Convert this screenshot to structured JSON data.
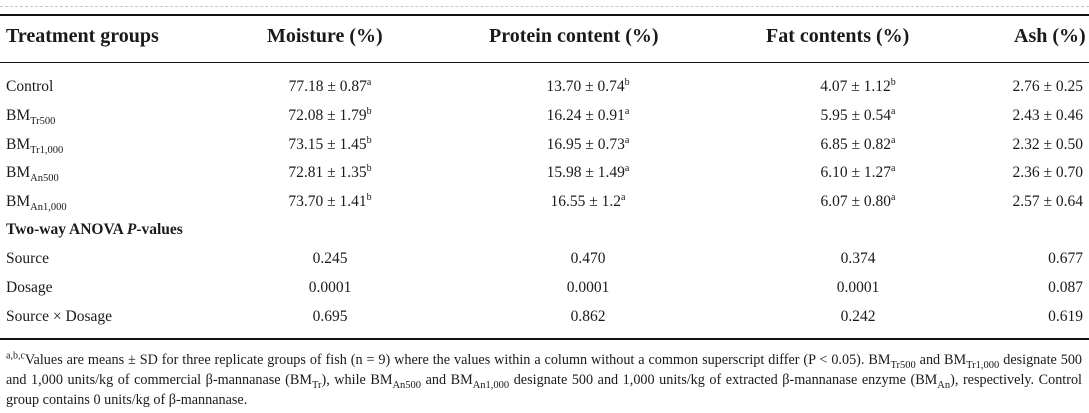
{
  "headers": {
    "col0": "Treatment groups",
    "col1": "Moisture (%)",
    "col2": "Protein content (%)",
    "col3": "Fat contents (%)",
    "col4": "Ash (%)"
  },
  "rows": [
    {
      "name": "Control",
      "name_sub": "",
      "c1": "77.18 ± 0.87",
      "s1": "a",
      "c2": "13.70 ± 0.74",
      "s2": "b",
      "c3": "4.07 ± 1.12",
      "s3": "b",
      "c4": "2.76 ± 0.25"
    },
    {
      "name": "BM",
      "name_sub": "Tr500",
      "c1": "72.08 ± 1.79",
      "s1": "b",
      "c2": "16.24 ± 0.91",
      "s2": "a",
      "c3": "5.95 ± 0.54",
      "s3": "a",
      "c4": "2.43 ± 0.46"
    },
    {
      "name": "BM",
      "name_sub": "Tr1,000",
      "c1": "73.15 ± 1.45",
      "s1": "b",
      "c2": "16.95 ± 0.73",
      "s2": "a",
      "c3": "6.85 ± 0.82",
      "s3": "a",
      "c4": "2.32 ± 0.50"
    },
    {
      "name": "BM",
      "name_sub": "An500",
      "c1": "72.81 ± 1.35",
      "s1": "b",
      "c2": "15.98 ± 1.49",
      "s2": "a",
      "c3": "6.10 ± 1.27",
      "s3": "a",
      "c4": "2.36 ± 0.70"
    },
    {
      "name": "BM",
      "name_sub": "An1,000",
      "c1": "73.70 ± 1.41",
      "s1": "b",
      "c2": "16.55 ± 1.2",
      "s2": "a",
      "c3": "6.07 ± 0.80",
      "s3": "a",
      "c4": "2.57 ± 0.64"
    }
  ],
  "anova": {
    "title_pre": "Two-way ANOVA ",
    "title_p": "P",
    "title_post": "-values",
    "rows": [
      {
        "name": "Source",
        "c1": "0.245",
        "c2": "0.470",
        "c3": "0.374",
        "c4": "0.677"
      },
      {
        "name": "Dosage",
        "c1": "0.0001",
        "c2": "0.0001",
        "c3": "0.0001",
        "c4": "0.087"
      },
      {
        "name": "Source × Dosage",
        "c1": "0.695",
        "c2": "0.862",
        "c3": "0.242",
        "c4": "0.619"
      }
    ]
  },
  "footnote": {
    "marker": "a,b,c",
    "t1": "Values are means ± SD for three replicate groups of fish (n = 9) where the values within a column without a common superscript differ (P < 0.05). BM",
    "s1": "Tr500",
    "t2": " and BM",
    "s2": "Tr1,000",
    "t3": " designate 500 and 1,000 units/kg of commercial β-mannanase (BM",
    "s3": "Tr",
    "t4": "), while BM",
    "s4": "An500",
    "t5": " and BM",
    "s5": "An1,000",
    "t6": " designate 500 and 1,000 units/kg of extracted β-mannanase enzyme (BM",
    "s6": "An",
    "t7": "), respectively. Control group contains 0 units/kg of β-mannanase."
  }
}
